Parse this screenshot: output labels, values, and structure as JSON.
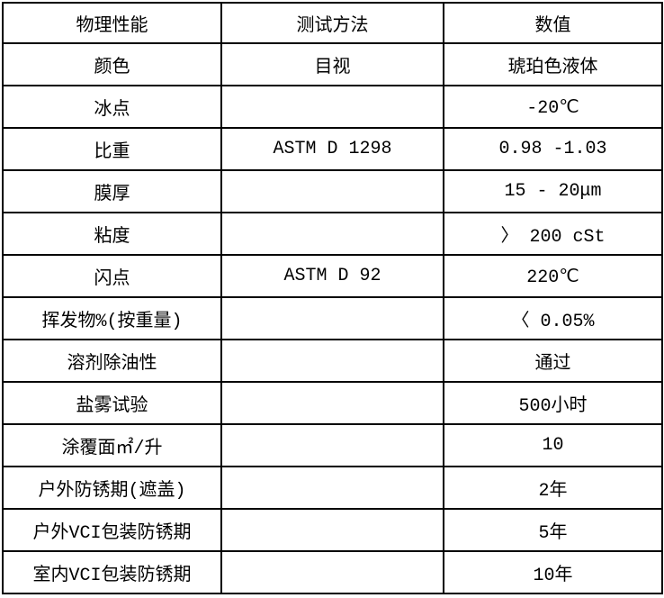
{
  "table": {
    "headers": {
      "property": "物理性能",
      "method": "测试方法",
      "value": "数值"
    },
    "rows": [
      {
        "property": "颜色",
        "method": "目视",
        "value": "琥珀色液体"
      },
      {
        "property": "冰点",
        "method": "",
        "value": "-20℃"
      },
      {
        "property": "比重",
        "method": "ASTM D 1298",
        "value": "0.98 -1.03"
      },
      {
        "property": "膜厚",
        "method": "",
        "value": "15 - 20μm"
      },
      {
        "property": "粘度",
        "method": "",
        "value": "〉 200 cSt"
      },
      {
        "property": "闪点",
        "method": "ASTM D 92",
        "value": "220℃"
      },
      {
        "property": "挥发物%(按重量)",
        "method": "",
        "value": "〈 0.05%"
      },
      {
        "property": "溶剂除油性",
        "method": "",
        "value": "通过"
      },
      {
        "property": "盐雾试验",
        "method": "",
        "value": "500小时"
      },
      {
        "property": "涂覆面㎡/升",
        "method": "",
        "value": "10"
      },
      {
        "property": "户外防锈期(遮盖)",
        "method": "",
        "value": "2年"
      },
      {
        "property": "户外VCI包装防锈期",
        "method": "",
        "value": "5年"
      },
      {
        "property": "室内VCI包装防锈期",
        "method": "",
        "value": "10年"
      }
    ]
  }
}
